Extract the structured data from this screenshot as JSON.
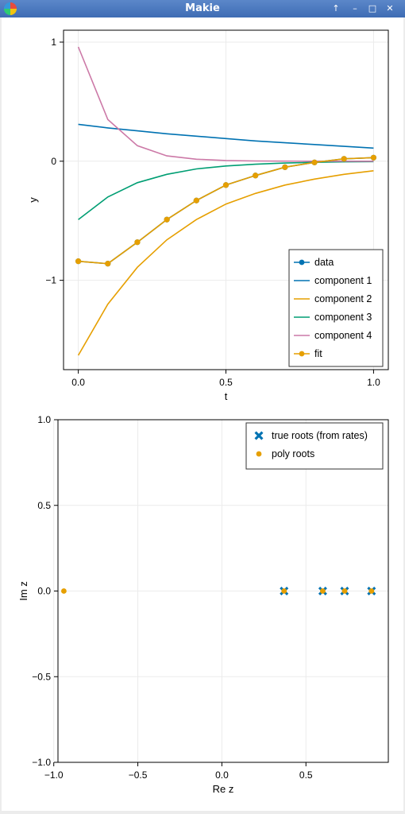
{
  "window": {
    "title": "Makie",
    "buttons": [
      "up-arrow-icon",
      "minimize-icon",
      "maximize-icon",
      "close-icon"
    ],
    "button_glyphs": [
      "↑",
      "–",
      "□",
      "✕"
    ]
  },
  "colors": {
    "blue": "#0072b2",
    "orange": "#e69f00",
    "green": "#009e73",
    "pink": "#cc79a7",
    "grid": "#ebebeb",
    "frame": "#000000"
  },
  "chart_data": [
    {
      "type": "line",
      "xlabel": "t",
      "ylabel": "y",
      "xlim": [
        -0.05,
        1.05
      ],
      "ylim": [
        -1.75,
        1.1
      ],
      "xticks": [
        0.0,
        0.5,
        1.0
      ],
      "xtick_labels": [
        "0.0",
        "0.5",
        "1.0"
      ],
      "yticks": [
        -1,
        0,
        1
      ],
      "ytick_labels": [
        "−1",
        "0",
        "1"
      ],
      "grid": true,
      "legend_position": "bottom-right",
      "x": [
        0.0,
        0.1,
        0.2,
        0.3,
        0.4,
        0.5,
        0.6,
        0.7,
        0.8,
        0.9,
        1.0
      ],
      "series": [
        {
          "name": "data",
          "style": "line+marker",
          "color": "#0072b2",
          "values": [
            -0.84,
            -0.86,
            -0.68,
            -0.49,
            -0.33,
            -0.2,
            -0.12,
            -0.05,
            -0.01,
            0.02,
            0.03
          ]
        },
        {
          "name": "component 1",
          "style": "line",
          "color": "#0072b2",
          "values": [
            0.31,
            0.28,
            0.255,
            0.23,
            0.21,
            0.19,
            0.17,
            0.155,
            0.14,
            0.125,
            0.11
          ]
        },
        {
          "name": "component 2",
          "style": "line",
          "color": "#e69f00",
          "values": [
            -1.63,
            -1.2,
            -0.89,
            -0.66,
            -0.49,
            -0.36,
            -0.27,
            -0.2,
            -0.15,
            -0.11,
            -0.08
          ]
        },
        {
          "name": "component 3",
          "style": "line",
          "color": "#009e73",
          "values": [
            -0.49,
            -0.3,
            -0.18,
            -0.11,
            -0.065,
            -0.04,
            -0.025,
            -0.015,
            -0.009,
            -0.005,
            -0.003
          ]
        },
        {
          "name": "component 4",
          "style": "line",
          "color": "#cc79a7",
          "values": [
            0.96,
            0.35,
            0.13,
            0.045,
            0.017,
            0.006,
            0.002,
            0.001,
            0.0,
            0.0,
            0.0
          ]
        },
        {
          "name": "fit",
          "style": "line+marker",
          "color": "#e69f00",
          "values": [
            -0.84,
            -0.86,
            -0.68,
            -0.49,
            -0.33,
            -0.2,
            -0.12,
            -0.05,
            -0.01,
            0.02,
            0.03
          ]
        }
      ]
    },
    {
      "type": "scatter",
      "xlabel": "Re z",
      "ylabel": "Im z",
      "xlim": [
        -0.975,
        0.99
      ],
      "ylim": [
        -1.0,
        1.0
      ],
      "xticks": [
        -1.0,
        -0.5,
        0.0,
        0.5
      ],
      "xtick_labels": [
        "−1.0",
        "−0.5",
        "0.0",
        "0.5"
      ],
      "yticks": [
        -1.0,
        -0.5,
        0.0,
        0.5,
        1.0
      ],
      "ytick_labels": [
        "−1.0",
        "−0.5",
        "0.0",
        "0.5",
        "1.0"
      ],
      "grid": true,
      "legend_position": "top-right",
      "series": [
        {
          "name": "true roots (from rates)",
          "marker": "x-cross",
          "color": "#0072b2",
          "points": [
            [
              0.37,
              0.0
            ],
            [
              0.6,
              0.0
            ],
            [
              0.73,
              0.0
            ],
            [
              0.89,
              0.0
            ]
          ]
        },
        {
          "name": "poly roots",
          "marker": "circle",
          "color": "#e69f00",
          "points": [
            [
              -0.94,
              0.0
            ],
            [
              0.37,
              0.0
            ],
            [
              0.6,
              0.0
            ],
            [
              0.73,
              0.0
            ],
            [
              0.89,
              0.0
            ]
          ]
        }
      ]
    }
  ]
}
